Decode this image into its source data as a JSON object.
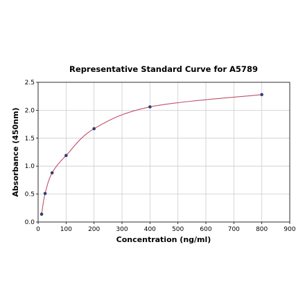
{
  "chart_data": {
    "type": "scatter",
    "title": "Representative Standard Curve for A5789",
    "xlabel": "Concentration (ng/ml)",
    "ylabel": "Absorbance (450nm)",
    "xlim": [
      0,
      900
    ],
    "ylim": [
      0,
      2.5
    ],
    "x_ticks": [
      "0",
      "100",
      "200",
      "300",
      "400",
      "500",
      "600",
      "700",
      "800",
      "900"
    ],
    "y_ticks": [
      "0.0",
      "0.5",
      "1.0",
      "1.5",
      "2.0",
      "2.5"
    ],
    "grid": true,
    "series": [
      {
        "x": [
          12.5,
          25,
          50,
          100,
          200,
          400,
          800
        ],
        "y": [
          0.14,
          0.51,
          0.88,
          1.19,
          1.67,
          2.06,
          2.28
        ],
        "marker": "point",
        "color": "#2f3f72"
      }
    ],
    "fit_curve": {
      "type": "line",
      "color": "#c0506a"
    }
  }
}
